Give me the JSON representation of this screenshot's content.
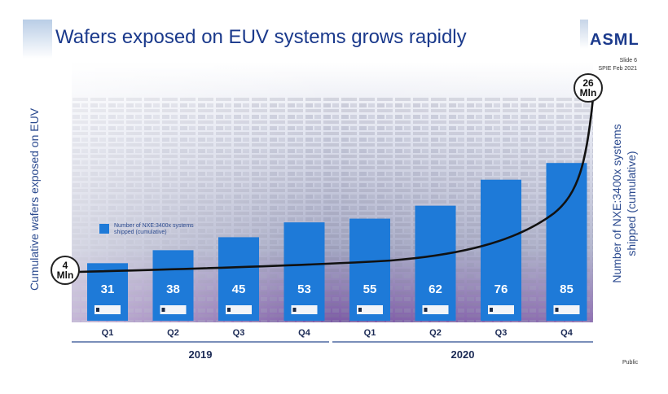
{
  "slide": {
    "title": "Wafers exposed on EUV systems grows rapidly",
    "logo": "ASML",
    "slide_number": "Slide 6",
    "event": "SPIE Feb 2021",
    "classification": "Public"
  },
  "callouts": {
    "start_value": "4",
    "start_unit": "Mln",
    "end_value": "26",
    "end_unit": "Mln"
  },
  "legend": {
    "label": "Number of NXE:3400x systems shipped (cumulative)"
  },
  "colors": {
    "title": "#1b3a8c",
    "bar": "#1e7ad8",
    "curve": "#111111",
    "axis_text": "#2b4a8f"
  },
  "chart_data": {
    "type": "bar",
    "title": "Wafers exposed on EUV systems grows rapidly",
    "ylabel_left": "Cumulative wafers exposed on EUV",
    "ylabel_right": "Number of NXE:3400x systems shipped (cumulative)",
    "categories": [
      "Q1",
      "Q2",
      "Q3",
      "Q4",
      "Q1",
      "Q2",
      "Q3",
      "Q4"
    ],
    "groups": [
      {
        "label": "2019",
        "categories": [
          "Q1",
          "Q2",
          "Q3",
          "Q4"
        ]
      },
      {
        "label": "2020",
        "categories": [
          "Q1",
          "Q2",
          "Q3",
          "Q4"
        ]
      }
    ],
    "series": [
      {
        "name": "Number of NXE:3400x systems shipped (cumulative)",
        "values": [
          31,
          38,
          45,
          53,
          55,
          62,
          76,
          85
        ]
      }
    ],
    "curve": {
      "name": "Cumulative wafers exposed on EUV",
      "start": "4 Mln",
      "end": "26 Mln"
    },
    "data_labels": true,
    "legend_position": "left-middle"
  }
}
